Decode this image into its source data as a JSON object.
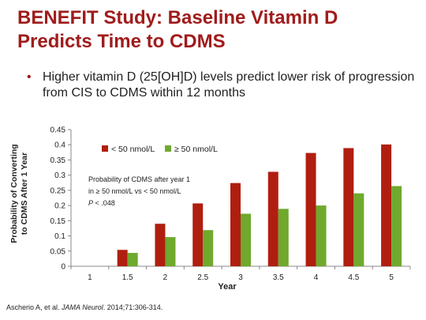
{
  "slide": {
    "title_line1": "BENEFIT Study: Baseline Vitamin D",
    "title_line2": "Predicts Time to CDMS",
    "bullet": "Higher vitamin D (25[OH]D) levels predict lower risk of progression from CIS to CDMS within 12 months",
    "citation_pre": "Ascherio A, et al. ",
    "citation_journal": "JAMA Neurol",
    "citation_post": ". 2014;71:306-314."
  },
  "colors": {
    "title": "#a01c1c",
    "series_low": "#b01e10",
    "series_high": "#6fa92d"
  },
  "chart_data": {
    "type": "bar",
    "title": "",
    "xlabel": "Year",
    "ylabel_line1": "Probability of Converting",
    "ylabel_line2": "to CDMS After 1 Year",
    "categories": [
      "1",
      "1.5",
      "2",
      "2.5",
      "3",
      "3.5",
      "4",
      "4.5",
      "5"
    ],
    "yticks": [
      "0",
      "0.05",
      "0.1",
      "0.15",
      "0.2",
      "0.25",
      "0.3",
      "0.35",
      "0.4",
      "0.45"
    ],
    "ylim": [
      0,
      0.45
    ],
    "series": [
      {
        "name": "< 50 nmol/L",
        "values": [
          0,
          0.054,
          0.14,
          0.207,
          0.274,
          0.311,
          0.373,
          0.389,
          0.401
        ]
      },
      {
        "name": "≥ 50 nmol/L",
        "values": [
          0,
          0.044,
          0.096,
          0.119,
          0.173,
          0.189,
          0.2,
          0.24,
          0.264
        ]
      }
    ],
    "legend_position": "top-left",
    "annotation_line1": "Probability of CDMS after year 1",
    "annotation_line2": "in ≥ 50 nmol/L vs < 50 nmol/L",
    "annotation_p_italic": "P",
    "annotation_p_rest": " < .048",
    "grid": false
  }
}
